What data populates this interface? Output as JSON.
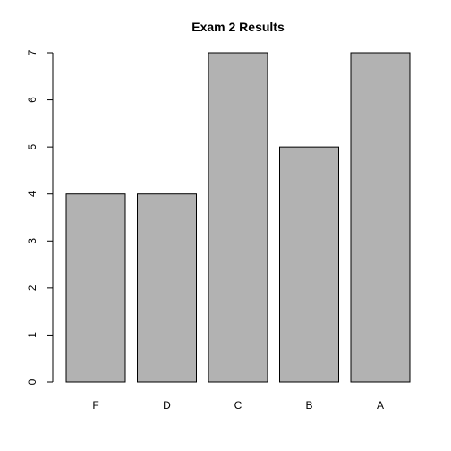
{
  "chart_data": {
    "type": "bar",
    "title": "Exam 2 Results",
    "xlabel": "",
    "ylabel": "",
    "categories": [
      "F",
      "D",
      "C",
      "B",
      "A"
    ],
    "values": [
      4,
      4,
      7,
      5,
      7
    ],
    "ylim": [
      0,
      7
    ],
    "yticks": [
      0,
      1,
      2,
      3,
      4,
      5,
      6,
      7
    ],
    "grid": false,
    "legend": "none",
    "bar_color": "#b2b2b2",
    "border_color": "#000000"
  }
}
